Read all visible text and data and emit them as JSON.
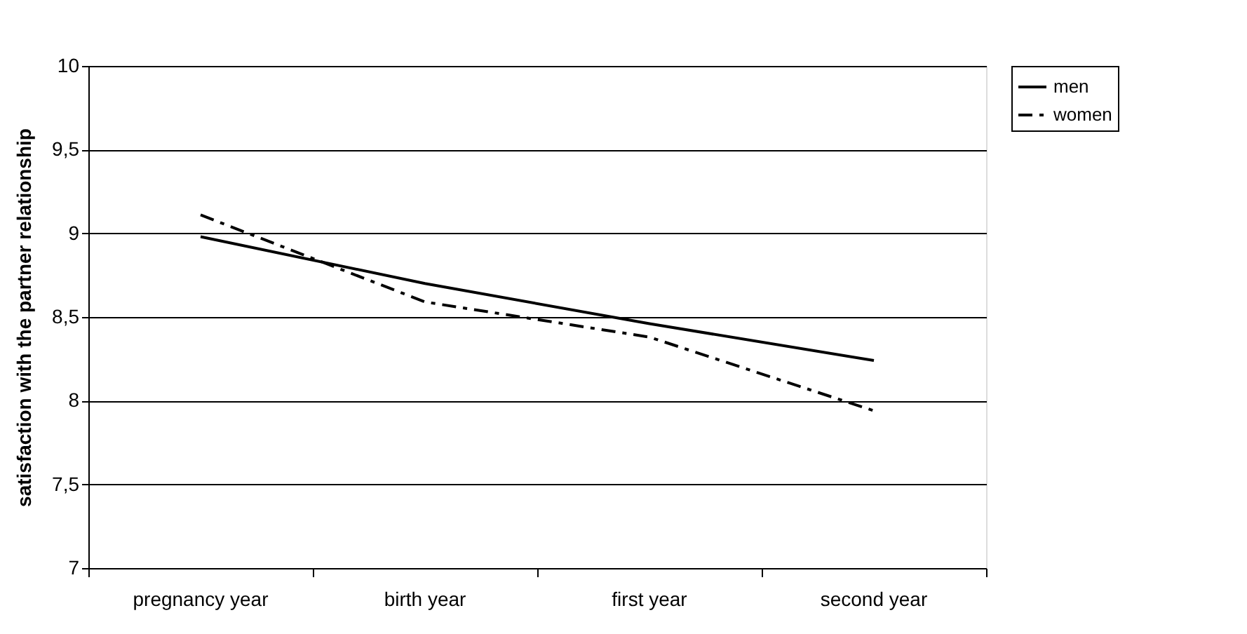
{
  "chart_data": {
    "type": "line",
    "ylabel": "satisfaction with the partner relationship",
    "categories": [
      "pregnancy year",
      "birth year",
      "first year",
      "second year"
    ],
    "series": [
      {
        "name": "men",
        "color": "#000000",
        "line_style": "solid",
        "values": [
          8.98,
          8.7,
          8.46,
          8.24
        ]
      },
      {
        "name": "women",
        "color": "#000000",
        "line_style": "dashdot",
        "values": [
          9.11,
          8.59,
          8.38,
          7.94
        ]
      }
    ],
    "ylim": [
      7,
      10
    ],
    "yticks": [
      7,
      {
        "value": 7.5,
        "label": "7,5"
      },
      8,
      {
        "value": 8.5,
        "label": "8,5"
      },
      9,
      {
        "value": 9.5,
        "label": "9,5"
      },
      10
    ],
    "grid": "y",
    "legend": "right",
    "marker": "none"
  }
}
